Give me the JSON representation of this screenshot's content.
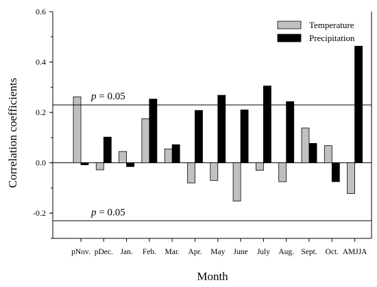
{
  "chart_data": {
    "type": "bar",
    "xlabel": "Month",
    "ylabel": "Correlation coefficients",
    "ylim": [
      -0.3,
      0.6
    ],
    "yticks": [
      "-0.2",
      "0.0",
      "0.2",
      "0.4",
      "0.6"
    ],
    "categories": [
      "pNov.",
      "pDec.",
      "Jan.",
      "Feb.",
      "Mar.",
      "Apr.",
      "May",
      "June",
      "July",
      "Aug.",
      "Sept.",
      "Oct.",
      "AMJJA"
    ],
    "series": [
      {
        "name": "Temperature",
        "color": "#c0c0c0",
        "values": [
          0.262,
          -0.028,
          0.045,
          0.175,
          0.055,
          -0.08,
          -0.07,
          -0.152,
          -0.03,
          -0.075,
          0.138,
          0.068,
          -0.122
        ]
      },
      {
        "name": "Precipitation",
        "color": "#000000",
        "values": [
          -0.008,
          0.102,
          -0.015,
          0.253,
          0.072,
          0.208,
          0.268,
          0.21,
          0.305,
          0.243,
          0.077,
          -0.075,
          0.463
        ]
      }
    ],
    "reference_lines": [
      {
        "value": 0.23,
        "label_italic": "p",
        "label_rest": " = 0.05"
      },
      {
        "value": -0.23,
        "label_italic": "p",
        "label_rest": " = 0.05"
      }
    ],
    "legend_position": "top-right",
    "grid": false
  }
}
